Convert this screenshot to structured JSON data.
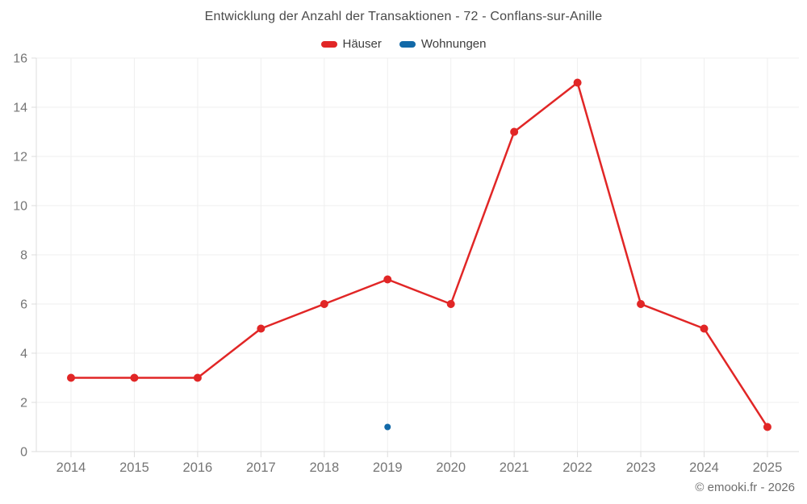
{
  "title": "Entwicklung der Anzahl der Transaktionen - 72 - Conflans-sur-Anille",
  "footer": "© emooki.fr - 2026",
  "colors": {
    "hauser_red": "#e12626",
    "wohnungen_blue": "#1269a8",
    "grid": "#efefef",
    "axis": "#dcdcdc",
    "tick_label": "#757575",
    "title_text": "#4a4a4a",
    "footer_text": "#6d6d6d"
  },
  "chart_data": {
    "type": "line",
    "title": "Entwicklung der Anzahl der Transaktionen - 72 - Conflans-sur-Anille",
    "categories": [
      "2014",
      "2015",
      "2016",
      "2017",
      "2018",
      "2019",
      "2020",
      "2021",
      "2022",
      "2023",
      "2024",
      "2025"
    ],
    "series": [
      {
        "name": "Häuser",
        "color": "#e12626",
        "marker_radius": 5,
        "line_width": 2.5,
        "values": [
          3,
          3,
          3,
          5,
          6,
          7,
          6,
          13,
          15,
          6,
          5,
          1
        ]
      },
      {
        "name": "Wohnungen",
        "color": "#1269a8",
        "marker_radius": 4,
        "line_width": 2.5,
        "values": [
          null,
          null,
          null,
          null,
          null,
          1,
          null,
          null,
          null,
          null,
          null,
          null
        ]
      }
    ],
    "xlabel": "",
    "ylabel": "",
    "ylim": [
      0,
      16
    ],
    "ytick_step": 2,
    "yticks": [
      0,
      2,
      4,
      6,
      8,
      10,
      12,
      14,
      16
    ],
    "grid": true,
    "legend_position": "top"
  }
}
